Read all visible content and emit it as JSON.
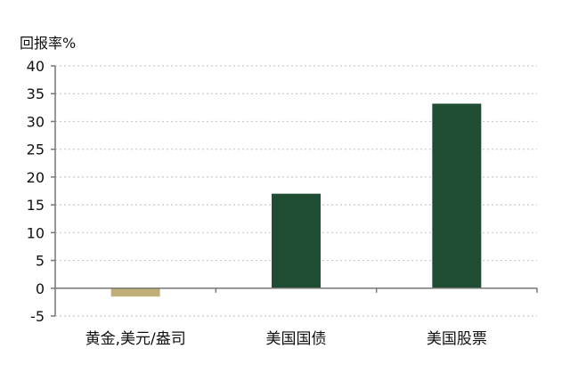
{
  "chart_data": {
    "type": "bar",
    "ylabel": "回报率%",
    "xlabel": "",
    "categories": [
      "黄金,美元/盎司",
      "美国国债",
      "美国股票"
    ],
    "values": [
      -1.5,
      17,
      33.2
    ],
    "bar_colors": [
      "#bfb07a",
      "#1f4d34",
      "#1f4d34"
    ],
    "ylim": [
      -5,
      40
    ],
    "yticks": [
      -5,
      0,
      5,
      10,
      15,
      20,
      25,
      30,
      35,
      40
    ],
    "grid": true,
    "legend": "none"
  }
}
